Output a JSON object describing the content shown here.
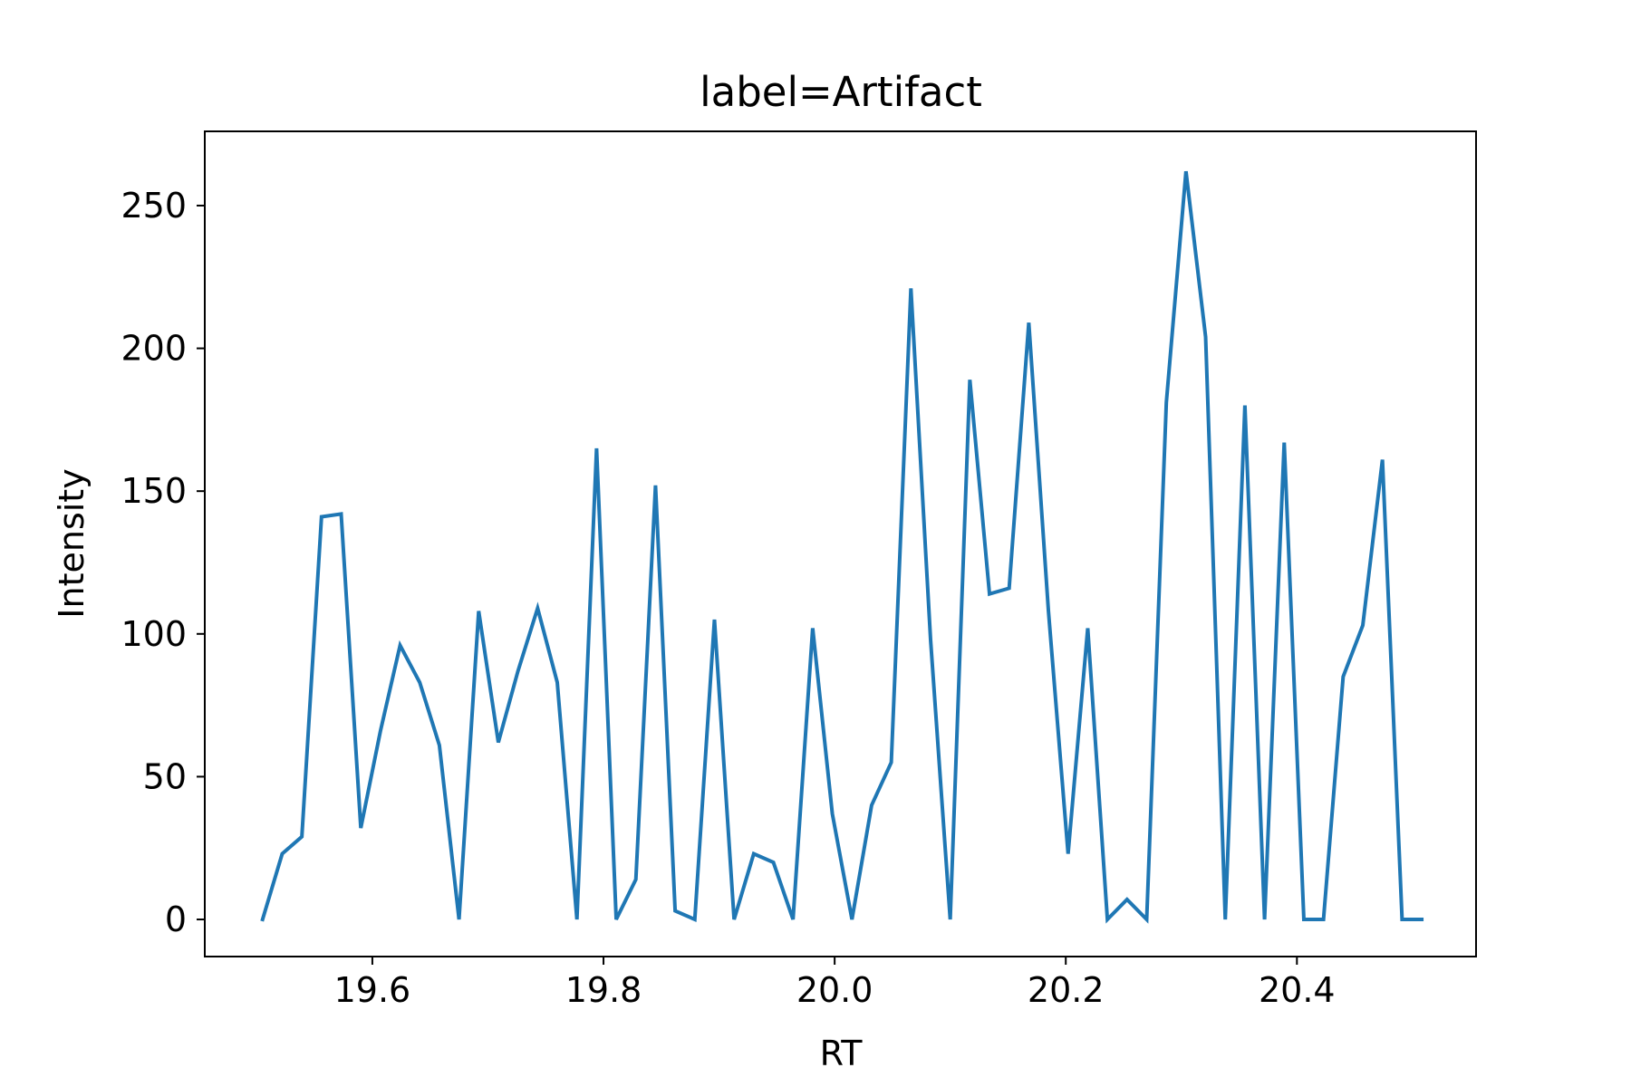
{
  "chart_data": {
    "type": "line",
    "title": "label=Artifact",
    "xlabel": "RT",
    "ylabel": "Intensity",
    "xlim": [
      19.455,
      20.555
    ],
    "ylim": [
      -13,
      276
    ],
    "grid": false,
    "x_ticks": [
      {
        "value": 19.6,
        "label": "19.6"
      },
      {
        "value": 19.8,
        "label": "19.8"
      },
      {
        "value": 20.0,
        "label": "20.0"
      },
      {
        "value": 20.2,
        "label": "20.2"
      },
      {
        "value": 20.4,
        "label": "20.4"
      }
    ],
    "y_ticks": [
      {
        "value": 0,
        "label": "0"
      },
      {
        "value": 50,
        "label": "50"
      },
      {
        "value": 100,
        "label": "100"
      },
      {
        "value": 150,
        "label": "150"
      },
      {
        "value": 200,
        "label": "200"
      },
      {
        "value": 250,
        "label": "250"
      }
    ],
    "series": [
      {
        "color": "#1f77b4",
        "x": [
          19.505,
          19.522,
          19.539,
          19.556,
          19.573,
          19.59,
          19.607,
          19.624,
          19.641,
          19.658,
          19.675,
          19.692,
          19.709,
          19.726,
          19.743,
          19.76,
          19.777,
          19.794,
          19.811,
          19.828,
          19.845,
          19.862,
          19.879,
          19.896,
          19.913,
          19.93,
          19.947,
          19.964,
          19.981,
          19.998,
          20.015,
          20.032,
          20.049,
          20.066,
          20.083,
          20.1,
          20.117,
          20.134,
          20.151,
          20.168,
          20.185,
          20.202,
          20.219,
          20.236,
          20.253,
          20.27,
          20.287,
          20.304,
          20.321,
          20.338,
          20.355,
          20.372,
          20.389,
          20.406,
          20.423,
          20.44,
          20.457,
          20.474,
          20.491,
          20.508
        ],
        "y": [
          0,
          23,
          29,
          141,
          142,
          32,
          66,
          96,
          83,
          61,
          0,
          108,
          62,
          87,
          109,
          83,
          0,
          165,
          0,
          14,
          152,
          3,
          0,
          105,
          0,
          23,
          20,
          0,
          102,
          37,
          0,
          40,
          55,
          221,
          98,
          0,
          189,
          114,
          116,
          209,
          108,
          23,
          102,
          0,
          7,
          0,
          181,
          262,
          204,
          0,
          180,
          0,
          167,
          0,
          0,
          85,
          103,
          161,
          0,
          0
        ]
      }
    ]
  }
}
